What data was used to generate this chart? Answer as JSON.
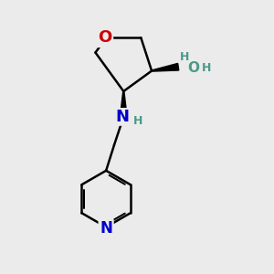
{
  "background_color": "#ebebeb",
  "bond_color": "#000000",
  "O_color": "#cc0000",
  "N_color": "#0000cc",
  "OH_color": "#4a9a8a",
  "figsize": [
    3.0,
    3.0
  ],
  "dpi": 100,
  "xlim": [
    0,
    10
  ],
  "ylim": [
    0,
    10
  ]
}
